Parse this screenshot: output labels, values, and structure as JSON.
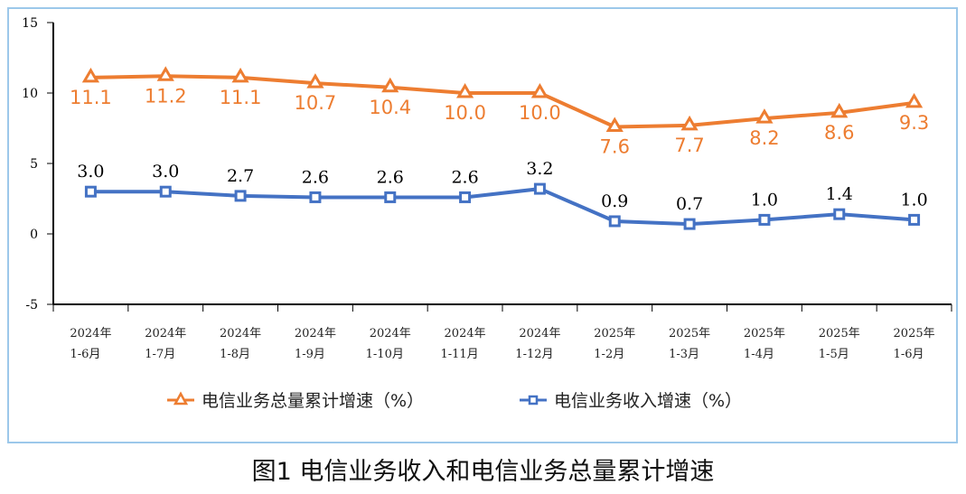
{
  "chart_data": {
    "type": "line",
    "title": "图1 电信业务收入和电信业务总量累计增速",
    "categories": [
      [
        "2024年",
        "1-6月"
      ],
      [
        "2024年",
        "1-7月"
      ],
      [
        "2024年",
        "1-8月"
      ],
      [
        "2024年",
        "1-9月"
      ],
      [
        "2024年",
        "1-10月"
      ],
      [
        "2024年",
        "1-11月"
      ],
      [
        "2024年",
        "1-12月"
      ],
      [
        "2025年",
        "1-2月"
      ],
      [
        "2025年",
        "1-3月"
      ],
      [
        "2025年",
        "1-4月"
      ],
      [
        "2025年",
        "1-5月"
      ],
      [
        "2025年",
        "1-6月"
      ]
    ],
    "ylim": [
      -5,
      15
    ],
    "yticks": [
      "15",
      "10",
      "5",
      "0",
      "-5"
    ],
    "grid": false,
    "legend_position": "bottom",
    "series": [
      {
        "name": "电信业务总量累计增速（%）",
        "color": "#ed7d31",
        "marker": "triangle",
        "values": [
          11.1,
          11.2,
          11.1,
          10.7,
          10.4,
          10.0,
          10.0,
          7.6,
          7.7,
          8.2,
          8.6,
          9.3
        ]
      },
      {
        "name": "电信业务收入增速（%）",
        "color": "#4472c4",
        "marker": "square",
        "values": [
          3.0,
          3.0,
          2.7,
          2.6,
          2.6,
          2.6,
          3.2,
          0.9,
          0.7,
          1.0,
          1.4,
          1.0
        ]
      }
    ]
  }
}
